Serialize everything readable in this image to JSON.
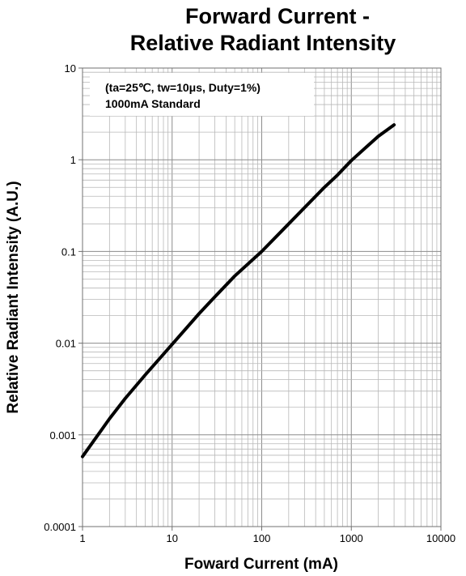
{
  "chart_data": {
    "type": "line",
    "title_lines": [
      "Forward Current -",
      "Relative Radiant Intensity"
    ],
    "xlabel": "Foward Current (mA)",
    "ylabel": "Relative Radiant Intensity (A.U.)",
    "xscale": "log",
    "yscale": "log",
    "xlim": [
      1,
      10000
    ],
    "ylim": [
      0.0001,
      10
    ],
    "x_ticks": [
      1,
      10,
      100,
      1000,
      10000
    ],
    "x_tick_labels": [
      "1",
      "10",
      "100",
      "1000",
      "10000"
    ],
    "y_ticks": [
      0.0001,
      0.001,
      0.01,
      0.1,
      1,
      10
    ],
    "y_tick_labels": [
      "0.0001",
      "0.001",
      "0.01",
      "0.1",
      "1",
      "10"
    ],
    "grid": true,
    "legend": null,
    "annotations": [
      "(ta=25℃, tw=10μs, Duty=1%)",
      "1000mA Standard"
    ],
    "series": [
      {
        "color": "#000000",
        "x": [
          1,
          2,
          3,
          5,
          10,
          20,
          30,
          50,
          100,
          200,
          300,
          500,
          700,
          1000,
          1500,
          2000,
          3000
        ],
        "y": [
          0.00058,
          0.0015,
          0.0025,
          0.0045,
          0.0097,
          0.021,
          0.032,
          0.054,
          0.1,
          0.2,
          0.3,
          0.5,
          0.68,
          0.98,
          1.4,
          1.8,
          2.4
        ]
      }
    ]
  }
}
